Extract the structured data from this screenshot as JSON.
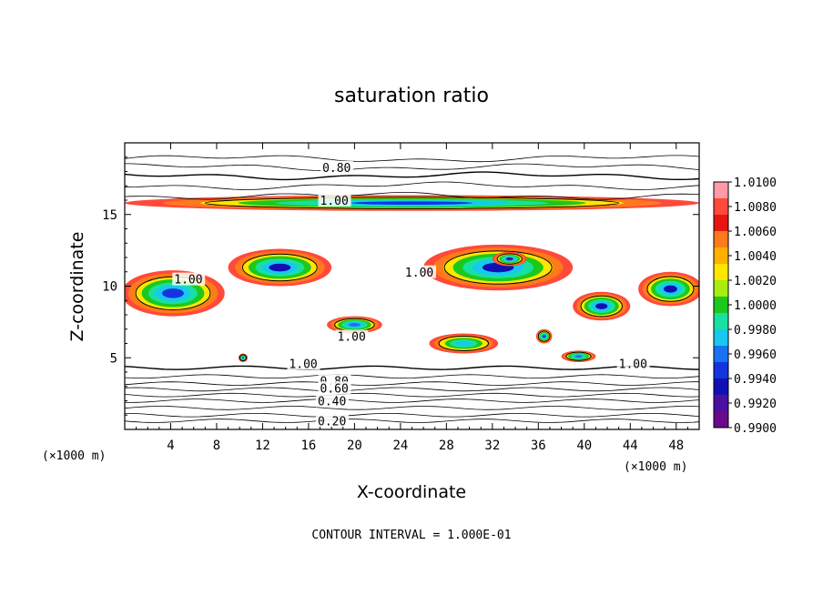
{
  "chart_data": {
    "type": "contour",
    "title": "saturation ratio",
    "xlabel": "X-coordinate",
    "ylabel": "Z-coordinate",
    "x_unit": "(×1000 m)",
    "x_unit_right": "(×1000 m)",
    "xlim": [
      0,
      50
    ],
    "ylim": [
      0,
      20
    ],
    "xticks": [
      "4",
      "8",
      "12",
      "16",
      "20",
      "24",
      "28",
      "32",
      "36",
      "40",
      "44",
      "48"
    ],
    "xtick_values": [
      4,
      8,
      12,
      16,
      20,
      24,
      28,
      32,
      36,
      40,
      44,
      48
    ],
    "yticks": [
      "5",
      "10",
      "15"
    ],
    "ytick_values": [
      5,
      10,
      15
    ],
    "contour_interval_text": "CONTOUR INTERVAL = 1.000E-01",
    "contour_labels": [
      {
        "text": "0.80",
        "x": 17.2,
        "y": 18.3
      },
      {
        "text": "1.00",
        "x": 17.0,
        "y": 16.0
      },
      {
        "text": "1.00",
        "x": 4.3,
        "y": 10.5
      },
      {
        "text": "1.00",
        "x": 24.4,
        "y": 11.0
      },
      {
        "text": "1.00",
        "x": 18.5,
        "y": 6.5
      },
      {
        "text": "1.00",
        "x": 14.3,
        "y": 4.6
      },
      {
        "text": "1.00",
        "x": 43.0,
        "y": 4.6
      },
      {
        "text": "0.80",
        "x": 17.0,
        "y": 3.4
      },
      {
        "text": "0.60",
        "x": 17.0,
        "y": 2.9
      },
      {
        "text": "0.40",
        "x": 16.8,
        "y": 2.0
      },
      {
        "text": "0.20",
        "x": 16.8,
        "y": 0.6
      }
    ],
    "contour_levels_y": [
      18.9,
      18.3,
      17.7,
      17.0,
      16.3,
      4.3,
      3.7,
      3.2,
      2.8,
      2.4,
      2.0,
      1.5,
      1.0,
      0.6
    ],
    "colorbar": {
      "labels": [
        "1.0100",
        "1.0080",
        "1.0060",
        "1.0040",
        "1.0020",
        "1.0000",
        "0.9980",
        "0.9960",
        "0.9940",
        "0.9920",
        "0.9900"
      ],
      "colors": [
        "#ff9aa6",
        "#ff4a3a",
        "#e81414",
        "#ff7a1a",
        "#ffb000",
        "#ffe600",
        "#a8ec10",
        "#1cc81c",
        "#18e0a0",
        "#18c8f0",
        "#1a72f0",
        "#1434e0",
        "#1010b4",
        "#4a10a0",
        "#6a0a8a"
      ]
    },
    "blobs": [
      {
        "cx": 25,
        "cy": 15.8,
        "rx": 25,
        "ry": 0.55,
        "v": 0.994
      },
      {
        "cx": 13.5,
        "cy": 11.3,
        "rx": 4.5,
        "ry": 1.3,
        "v": 0.9935
      },
      {
        "cx": 4.2,
        "cy": 9.5,
        "rx": 4.5,
        "ry": 1.6,
        "v": 0.9945
      },
      {
        "cx": 32.5,
        "cy": 11.3,
        "rx": 6.5,
        "ry": 1.6,
        "v": 0.9925
      },
      {
        "cx": 33.5,
        "cy": 11.9,
        "rx": 1.5,
        "ry": 0.5,
        "v": 0.991
      },
      {
        "cx": 41.5,
        "cy": 8.6,
        "rx": 2.5,
        "ry": 1.0,
        "v": 0.9935
      },
      {
        "cx": 47.5,
        "cy": 9.8,
        "rx": 2.8,
        "ry": 1.2,
        "v": 0.993
      },
      {
        "cx": 20.0,
        "cy": 7.3,
        "rx": 2.4,
        "ry": 0.6,
        "v": 0.996
      },
      {
        "cx": 36.5,
        "cy": 6.5,
        "rx": 0.7,
        "ry": 0.5,
        "v": 0.995
      },
      {
        "cx": 10.3,
        "cy": 5.0,
        "rx": 0.4,
        "ry": 0.3,
        "v": 0.994
      },
      {
        "cx": 39.5,
        "cy": 5.1,
        "rx": 1.5,
        "ry": 0.4,
        "v": 0.996
      },
      {
        "cx": 29.5,
        "cy": 6.0,
        "rx": 3.0,
        "ry": 0.7,
        "v": 0.9975
      }
    ]
  }
}
